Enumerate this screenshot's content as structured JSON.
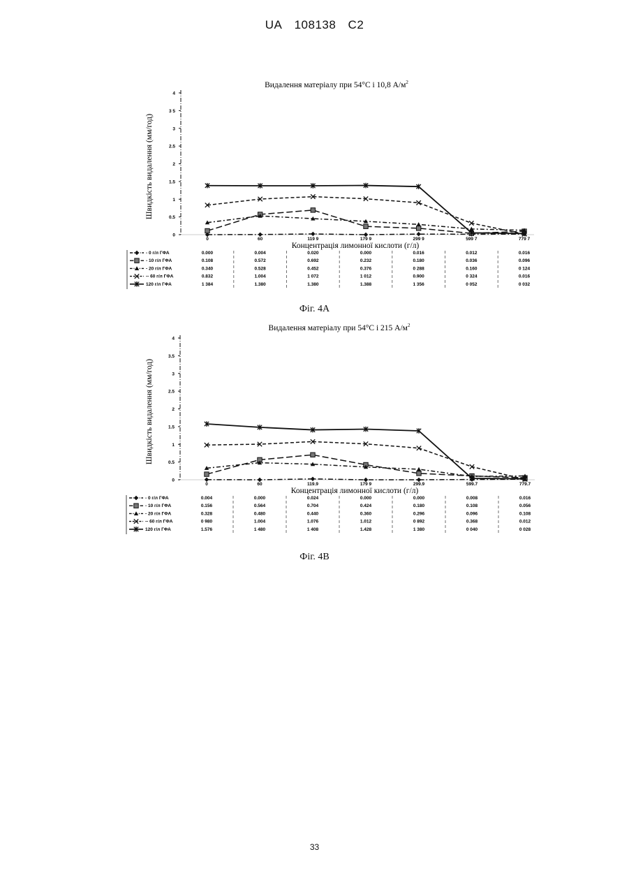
{
  "header": {
    "country": "UA",
    "number": "108138",
    "kind": "C2"
  },
  "page_number": "33",
  "figures": [
    {
      "caption": "Фіг. 4А"
    },
    {
      "caption": "Фіг. 4В"
    }
  ],
  "chart_data": [
    {
      "type": "line",
      "title": "Видалення матеріалу при 54°C і 10,8 А/м",
      "title_superscript": "2",
      "xlabel": "Концентрація лимонної кислоти (г/л)",
      "ylabel": "Швидкість видалення (мм/год)",
      "ylim": [
        0,
        4
      ],
      "yticks": [
        "0",
        "0.5",
        "1",
        "1.5",
        "2",
        "2.5",
        "3",
        "3 5",
        "4"
      ],
      "categories": [
        "0",
        "60",
        "119 9",
        "179 9",
        "299 9",
        "599 7",
        "779 7"
      ],
      "series": [
        {
          "name": "0 г/л ГФА",
          "legend_label": "- 0 г/л ГФА",
          "color": "#111111",
          "marker": "diamond",
          "dash": "dashdot",
          "values": [
            0.0,
            0.004,
            0.02,
            0.0,
            0.016,
            0.012,
            0.016
          ],
          "table": [
            "0.000",
            "0.004",
            "0.020",
            "0.000",
            "0.016",
            "0.012",
            "0.016"
          ]
        },
        {
          "name": "10 г/л ГФА",
          "legend_label": "- 10 г/л ГФА",
          "color": "#111111",
          "marker": "square",
          "dash": "longdash",
          "values": [
            0.108,
            0.572,
            0.692,
            0.232,
            0.18,
            0.036,
            0.096
          ],
          "table": [
            "0.108",
            "0.572",
            "0.692",
            "0.232",
            "0.180",
            "0.036",
            "0.096"
          ]
        },
        {
          "name": "20 г/л ГФА",
          "legend_label": "- 20 г/л ГФА",
          "color": "#111111",
          "marker": "triangle",
          "dash": "dashdot2",
          "values": [
            0.34,
            0.528,
            0.452,
            0.376,
            0.288,
            0.16,
            0.124
          ],
          "table": [
            "0.340",
            "0.528",
            "0.452",
            "0.376",
            "0 288",
            "0.160",
            "0 124"
          ]
        },
        {
          "name": "60 г/л ГФА",
          "legend_label": "-- 60 г/л ГФА",
          "color": "#111111",
          "marker": "x",
          "dash": "dash",
          "values": [
            0.832,
            1.004,
            1.072,
            1.012,
            0.9,
            0.324,
            0.016
          ],
          "table": [
            "0.832",
            "1.004",
            "1 072",
            "1 012",
            "0.900",
            "0 324",
            "0.016"
          ]
        },
        {
          "name": "120 г/л ГФА",
          "legend_label": "120 г/л ГФА",
          "color": "#111111",
          "marker": "star",
          "dash": "solid",
          "values": [
            1.384,
            1.38,
            1.38,
            1.388,
            1.356,
            0.052,
            0.032
          ],
          "table": [
            "1 384",
            "1.380",
            "1.380",
            "1.388",
            "1 356",
            "0 052",
            "0 032"
          ]
        }
      ]
    },
    {
      "type": "line",
      "title": "Видалення матеріалу при 54°C і 215 А/м",
      "title_superscript": "2",
      "xlabel": "Концентрація лимонної кислоти (г/л)",
      "ylabel": "Швидкість видалення (мм/год)",
      "ylim": [
        0,
        4
      ],
      "yticks": [
        "0",
        "0.5",
        "1",
        "1.5",
        "2",
        "2.5",
        "3",
        "3.5",
        "4"
      ],
      "categories": [
        "0",
        "60",
        "119.9",
        "179 9",
        "299.9",
        "599.7",
        "779.7"
      ],
      "series": [
        {
          "name": "0 г/л ГФА",
          "legend_label": "- 0 г/л ГФА",
          "color": "#111111",
          "marker": "diamond",
          "dash": "dashdot",
          "values": [
            0.004,
            0.0,
            0.024,
            0.0,
            0.0,
            0.008,
            0.016
          ],
          "table": [
            "0.004",
            "0.000",
            "0.024",
            "0.000",
            "0.000",
            "0.008",
            "0.016"
          ]
        },
        {
          "name": "10 г/л ГФА",
          "legend_label": "- 10 г/л ГФА",
          "color": "#111111",
          "marker": "square",
          "dash": "longdash",
          "values": [
            0.156,
            0.564,
            0.704,
            0.424,
            0.18,
            0.108,
            0.056
          ],
          "table": [
            "0.156",
            "0.564",
            "0.704",
            "0.424",
            "0.180",
            "0.108",
            "0.056"
          ]
        },
        {
          "name": "20 г/л ГФА",
          "legend_label": "- 20 г/л ГФА",
          "color": "#111111",
          "marker": "triangle",
          "dash": "dashdot2",
          "values": [
            0.328,
            0.48,
            0.44,
            0.36,
            0.296,
            0.096,
            0.108
          ],
          "table": [
            "0.328",
            "0.480",
            "0.440",
            "0.360",
            "0.296",
            "0.096",
            "0.108"
          ]
        },
        {
          "name": "60 г/л ГФА",
          "legend_label": "-- 60 г/л ГФА",
          "color": "#111111",
          "marker": "x",
          "dash": "dash",
          "values": [
            0.98,
            1.004,
            1.076,
            1.012,
            0.892,
            0.368,
            0.012
          ],
          "table": [
            "0 980",
            "1.004",
            "1.076",
            "1.012",
            "0 892",
            "0.368",
            "0.012"
          ]
        },
        {
          "name": "120 г/л ГФА",
          "legend_label": "120 г/л ГФА",
          "color": "#111111",
          "marker": "star",
          "dash": "solid",
          "values": [
            1.576,
            1.48,
            1.408,
            1.428,
            1.38,
            0.04,
            0.028
          ],
          "table": [
            "1.576",
            "1 480",
            "1 408",
            "1.428",
            "1 380",
            "0 040",
            "0 028"
          ]
        }
      ]
    }
  ]
}
